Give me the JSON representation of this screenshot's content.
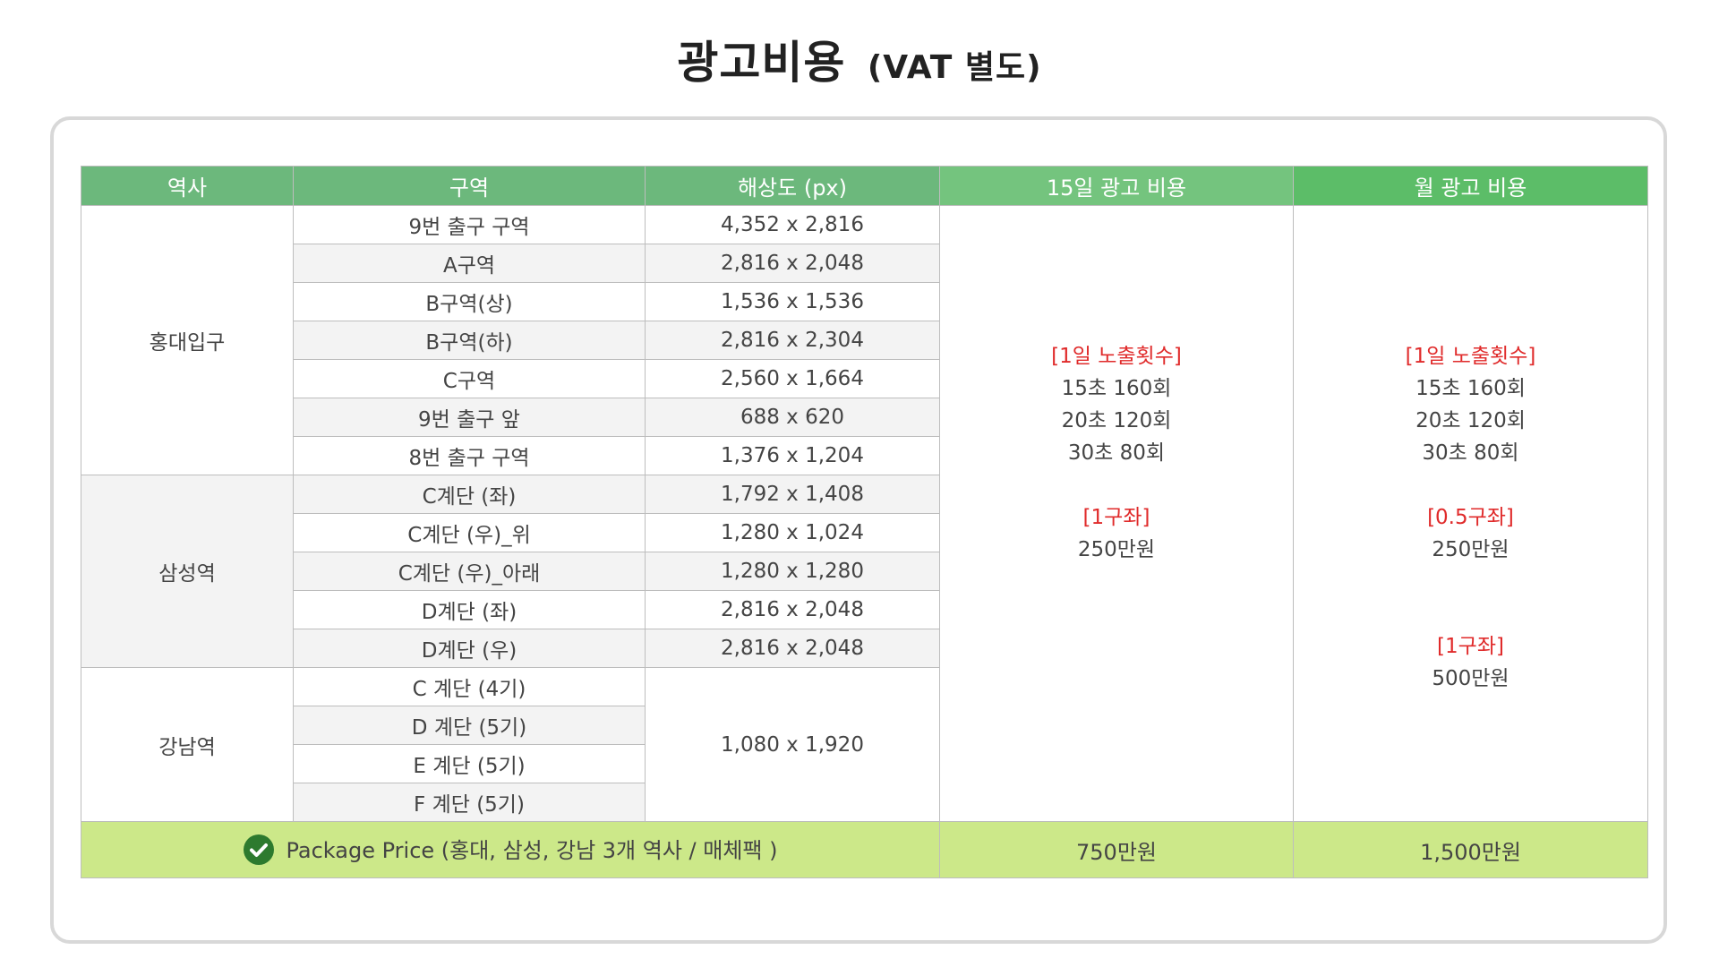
{
  "title": {
    "main": "광고비용",
    "sub": "(VAT 별도)"
  },
  "headers": [
    "역사",
    "구역",
    "해상도 (px)",
    "15일 광고 비용",
    "월 광고 비용"
  ],
  "stations": [
    {
      "name": "홍대입구",
      "rows": [
        {
          "zone": "9번 출구 구역",
          "res": "4,352 x 2,816"
        },
        {
          "zone": "A구역",
          "res": "2,816 x 2,048"
        },
        {
          "zone": "B구역(상)",
          "res": "1,536 x 1,536"
        },
        {
          "zone": "B구역(하)",
          "res": "2,816 x 2,304"
        },
        {
          "zone": "C구역",
          "res": "2,560 x 1,664"
        },
        {
          "zone": "9번 출구 앞",
          "res": "688 x 620"
        },
        {
          "zone": "8번 출구 구역",
          "res": "1,376 x 1,204"
        }
      ]
    },
    {
      "name": "삼성역",
      "rows": [
        {
          "zone": "C계단 (좌)",
          "res": "1,792 x 1,408"
        },
        {
          "zone": "C계단 (우)_위",
          "res": "1,280 x 1,024"
        },
        {
          "zone": "C계단 (우)_아래",
          "res": "1,280 x 1,280"
        },
        {
          "zone": "D계단 (좌)",
          "res": "2,816 x 2,048"
        },
        {
          "zone": "D계단 (우)",
          "res": "2,816 x 2,048"
        }
      ]
    },
    {
      "name": "강남역",
      "rows": [
        {
          "zone": "C 계단 (4기)"
        },
        {
          "zone": "D 계단 (5기)"
        },
        {
          "zone": "E 계단 (5기)"
        },
        {
          "zone": "F 계단 (5기)"
        }
      ],
      "res": "1,080 x 1,920"
    }
  ],
  "price15": {
    "exposure_label": "[1일 노출횟수]",
    "exposures": [
      "15초 160회",
      "20초 120회",
      "30초 80회"
    ],
    "slot_label": "[1구좌]",
    "slot_price": "250만원"
  },
  "priceMonth": {
    "exposure_label": "[1일 노출횟수]",
    "exposures": [
      "15초 160회",
      "20초 120회",
      "30초 80회"
    ],
    "half_label": "[0.5구좌]",
    "half_price": "250만원",
    "slot_label": "[1구좌]",
    "slot_price": "500만원"
  },
  "package": {
    "label": "Package Price (홍대, 삼성, 강남 3개 역사 / 매체팩 )",
    "price15": "750만원",
    "priceMonth": "1,500만원"
  },
  "colors": {
    "header_green": "#6cb87c",
    "package_bg": "#cce889",
    "accent_red": "#e02b2b",
    "check_green": "#2d7a2e"
  }
}
